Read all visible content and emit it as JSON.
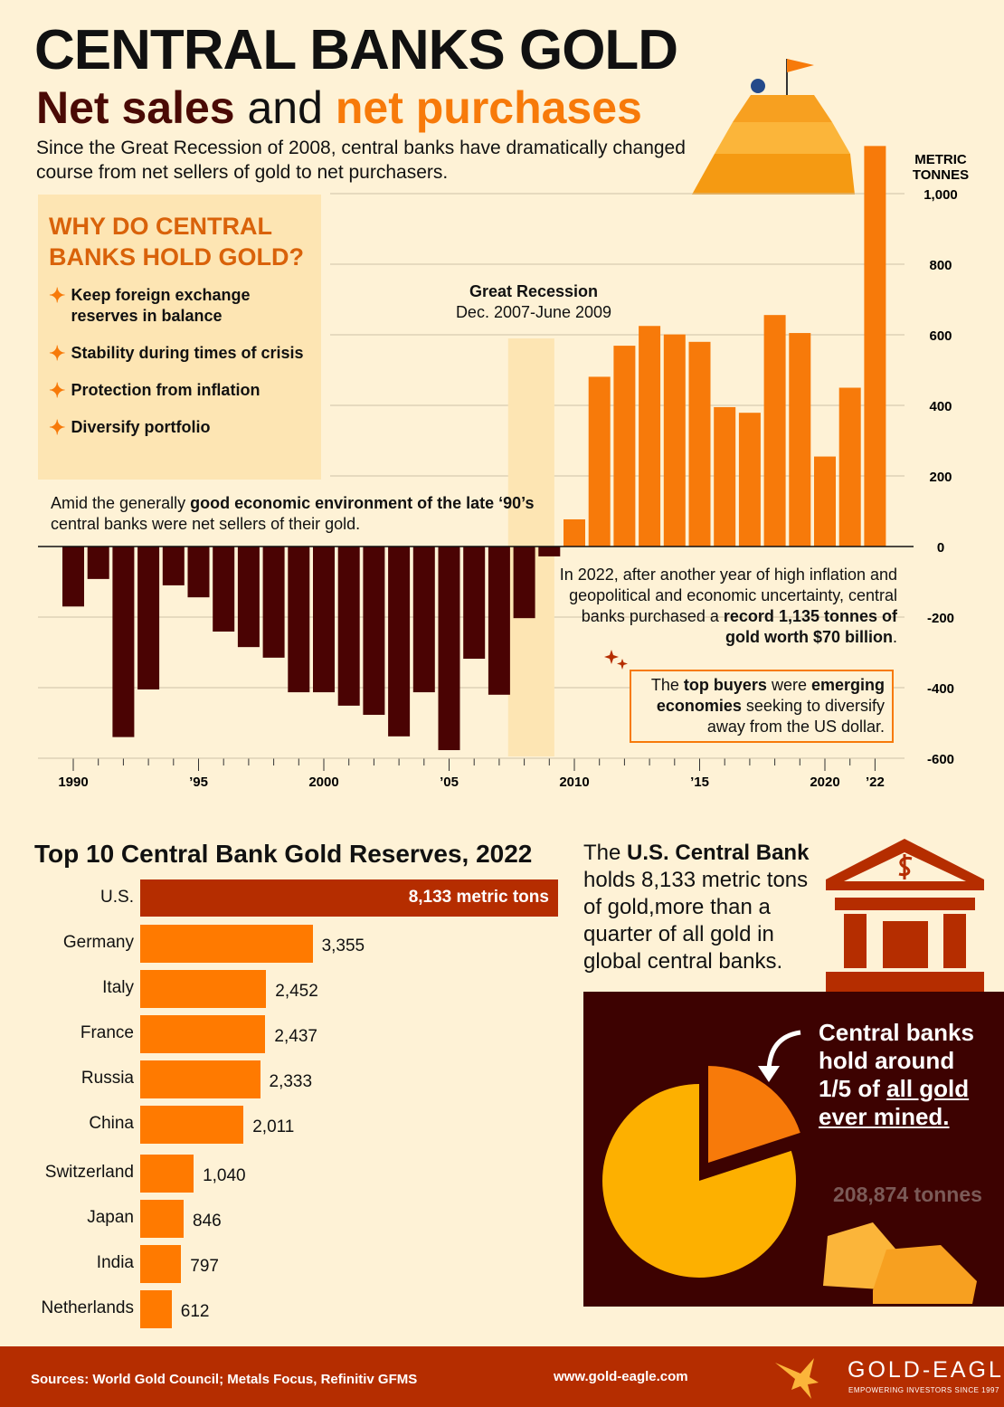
{
  "header": {
    "title": "CENTRAL BANKS GOLD",
    "subtitle_part1": "Net sales",
    "subtitle_part2": "and",
    "subtitle_part3": "net purchases",
    "intro": "Since the Great Recession of 2008, central banks have dramatically changed course from net sellers of gold to net purchasers."
  },
  "why": {
    "heading": "WHY DO CENTRAL BANKS HOLD GOLD?",
    "items": [
      "Keep foreign exchange reserves in balance",
      "Stability during times of crisis",
      "Protection from inflation",
      "Diversify portfolio"
    ]
  },
  "annotations": {
    "recession_title": "Great Recession",
    "recession_dates": "Dec. 2007-June 2009",
    "nineties_pre": "Amid the generally ",
    "nineties_bold": "good economic environment of the late ‘90’s",
    "nineties_post": " central banks were net sellers of their gold.",
    "y2022_text": "In 2022, after another year of high inflation and geopolitical and economic uncertainty, central banks purchased a ",
    "y2022_bold1": "record",
    "y2022_bold2": "1,135 tonnes of gold worth $70 billion",
    "buyers_1": "The ",
    "buyers_2": "top buyers",
    "buyers_3": " were ",
    "buyers_4": "emerging economies",
    "buyers_5": " seeking to diversify away from the US dollar."
  },
  "colors": {
    "sales": "#4a0303",
    "purchases": "#f77a0a",
    "recession": "#fde5b3",
    "us_bar": "#b52d00",
    "reserve_bar": "#ff7a00",
    "pie_main": "#fdb000",
    "pie_slice": "#f77a0a"
  },
  "chart_data": [
    {
      "type": "bar",
      "ylabel": "METRIC TONNES",
      "ylim": [
        -600,
        1100
      ],
      "yticks": [
        -600,
        -400,
        -200,
        0,
        200,
        400,
        600,
        800,
        1000
      ],
      "ytick_labels": [
        "-600",
        "-400",
        "-200",
        "0",
        "200",
        "400",
        "600",
        "800",
        "1,000"
      ],
      "xtick_years": [
        1990,
        1995,
        2000,
        2005,
        2010,
        2015,
        2020,
        2022
      ],
      "xtick_labels": [
        "1990",
        "’95",
        "2000",
        "’05",
        "2010",
        "’15",
        "2020",
        "’22"
      ],
      "shaded_period": [
        2007.5,
        2009.2
      ],
      "grid": true,
      "years": [
        1990,
        1991,
        1992,
        1993,
        1994,
        1995,
        1996,
        1997,
        1998,
        1999,
        2000,
        2001,
        2002,
        2003,
        2004,
        2005,
        2006,
        2007,
        2008,
        2009,
        2010,
        2011,
        2012,
        2013,
        2014,
        2015,
        2016,
        2017,
        2018,
        2019,
        2020,
        2021,
        2022
      ],
      "values": [
        -170,
        -92,
        -540,
        -405,
        -110,
        -144,
        -241,
        -285,
        -315,
        -413,
        -413,
        -451,
        -477,
        -538,
        -413,
        -577,
        -318,
        -420,
        -203,
        -28,
        77,
        481,
        569,
        625,
        601,
        580,
        395,
        379,
        656,
        605,
        255,
        450,
        1135
      ]
    },
    {
      "type": "bar",
      "title": "Top 10 Central Bank Gold Reserves, 2022",
      "orientation": "horizontal",
      "categories": [
        "U.S.",
        "Germany",
        "Italy",
        "France",
        "Russia",
        "China",
        "Switzerland",
        "Japan",
        "India",
        "Netherlands"
      ],
      "values": [
        8133,
        3355,
        2452,
        2437,
        2333,
        2011,
        1040,
        846,
        797,
        612
      ],
      "value_labels": [
        "8,133 metric tons",
        "3,355",
        "2,452",
        "2,437",
        "2,333",
        "2,011",
        "1,040",
        "846",
        "797",
        "612"
      ]
    },
    {
      "type": "pie",
      "values": [
        20,
        80
      ],
      "slice_label": "1/5"
    }
  ],
  "usnote": {
    "pre": "The ",
    "bold": "U.S. Central Bank",
    "post": " holds 8,133 metric tons of gold,more than a quarter of all gold in global central banks."
  },
  "pie_note": {
    "l1": "Central banks",
    "l2": "hold around",
    "l3": "1/5 of ",
    "l3u": "all gold",
    "l4": "ever mined.",
    "total": "208,874 tonnes"
  },
  "footer": {
    "sources": "Sources: World Gold Council;  Metals Focus, Refinitiv GFMS",
    "url": "www.gold-eagle.com",
    "brand": "GOLD-EAGLE",
    "tagline": "EMPOWERING INVESTORS SINCE 1997"
  }
}
